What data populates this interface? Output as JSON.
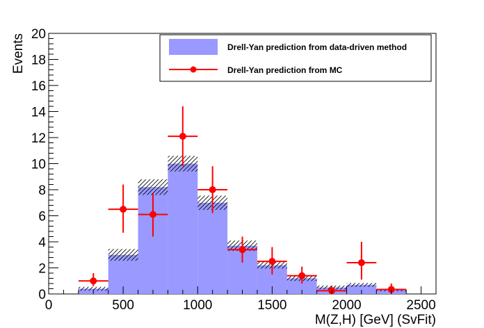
{
  "chart_data": {
    "type": "bar",
    "xlabel": "M(Z,H) [GeV] (SvFit)",
    "ylabel": "Events",
    "xlim": [
      0,
      2600
    ],
    "ylim": [
      0,
      20
    ],
    "grid": false,
    "legend_position": "top-right",
    "x_ticks": [
      0,
      500,
      1000,
      1500,
      2000,
      2500
    ],
    "y_ticks": [
      0,
      2,
      4,
      6,
      8,
      10,
      12,
      14,
      16,
      18,
      20
    ],
    "bin_edges": [
      200,
      400,
      600,
      800,
      1000,
      1200,
      1400,
      1600,
      1800,
      2000,
      2200,
      2400
    ],
    "series": [
      {
        "name": "Drell-Yan prediction from data-driven method",
        "style": "filled-histogram",
        "color": "#9999ff",
        "values": [
          0.4,
          3.0,
          8.2,
          10.0,
          7.0,
          3.7,
          2.2,
          1.2,
          0.5,
          0.7,
          0.3
        ],
        "uncertainty": [
          0.15,
          0.45,
          0.6,
          0.6,
          0.55,
          0.4,
          0.25,
          0.2,
          0.15,
          0.15,
          0.1
        ]
      },
      {
        "name": "Drell-Yan prediction from MC",
        "style": "points-with-errors",
        "color": "#ff0000",
        "x": [
          300,
          500,
          700,
          900,
          1100,
          1300,
          1500,
          1700,
          1900,
          2100,
          2300
        ],
        "values": [
          1.0,
          6.5,
          6.1,
          12.1,
          8.0,
          3.4,
          2.5,
          1.4,
          0.25,
          2.4,
          0.35
        ],
        "y_low": [
          0.6,
          4.7,
          4.4,
          9.8,
          6.2,
          2.4,
          1.5,
          0.8,
          0.05,
          1.1,
          0.05
        ],
        "y_high": [
          1.6,
          8.4,
          7.7,
          14.4,
          9.8,
          4.4,
          3.6,
          2.1,
          0.6,
          4.0,
          0.8
        ]
      }
    ]
  }
}
